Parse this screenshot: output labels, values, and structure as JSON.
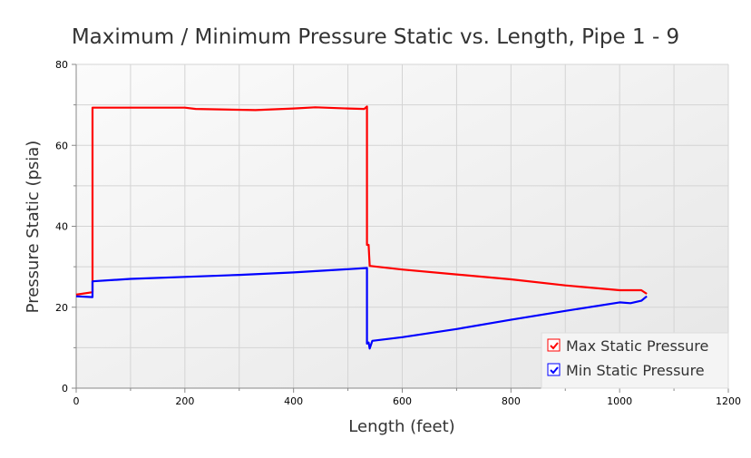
{
  "chart_data": {
    "type": "line",
    "title": "Maximum / Minimum Pressure Static vs. Length, Pipe 1 - 9",
    "xlabel": "Length (feet)",
    "ylabel": "Pressure Static (psia)",
    "xlim": [
      0,
      1200
    ],
    "ylim": [
      0,
      80
    ],
    "xticks": [
      "0",
      "200",
      "400",
      "600",
      "800",
      "1000",
      "1200"
    ],
    "yticks": [
      "0",
      "20",
      "40",
      "60",
      "80"
    ],
    "grid": true,
    "legend_position": "bottom-right",
    "series": [
      {
        "name": "Max Static Pressure",
        "color": "#ff0000",
        "x": [
          0,
          30,
          30,
          200,
          220,
          330,
          400,
          440,
          500,
          530,
          535,
          535,
          538,
          540,
          600,
          700,
          800,
          900,
          1000,
          1040,
          1050
        ],
        "y": [
          23.1,
          23.7,
          69.3,
          69.3,
          69.0,
          68.7,
          69.1,
          69.4,
          69.1,
          69.0,
          69.6,
          35.4,
          35.4,
          30.2,
          29.3,
          28.1,
          26.9,
          25.4,
          24.2,
          24.2,
          23.3
        ]
      },
      {
        "name": "Min Static Pressure",
        "color": "#0000ff",
        "x": [
          0,
          30,
          30,
          100,
          200,
          300,
          400,
          500,
          535,
          535,
          538,
          540,
          545,
          600,
          700,
          800,
          900,
          1000,
          1020,
          1040,
          1050
        ],
        "y": [
          22.7,
          22.5,
          26.4,
          27.0,
          27.5,
          28.0,
          28.6,
          29.4,
          29.7,
          11.0,
          11.3,
          9.8,
          11.7,
          12.6,
          14.6,
          16.9,
          19.1,
          21.2,
          21.0,
          21.6,
          22.7
        ]
      }
    ]
  }
}
